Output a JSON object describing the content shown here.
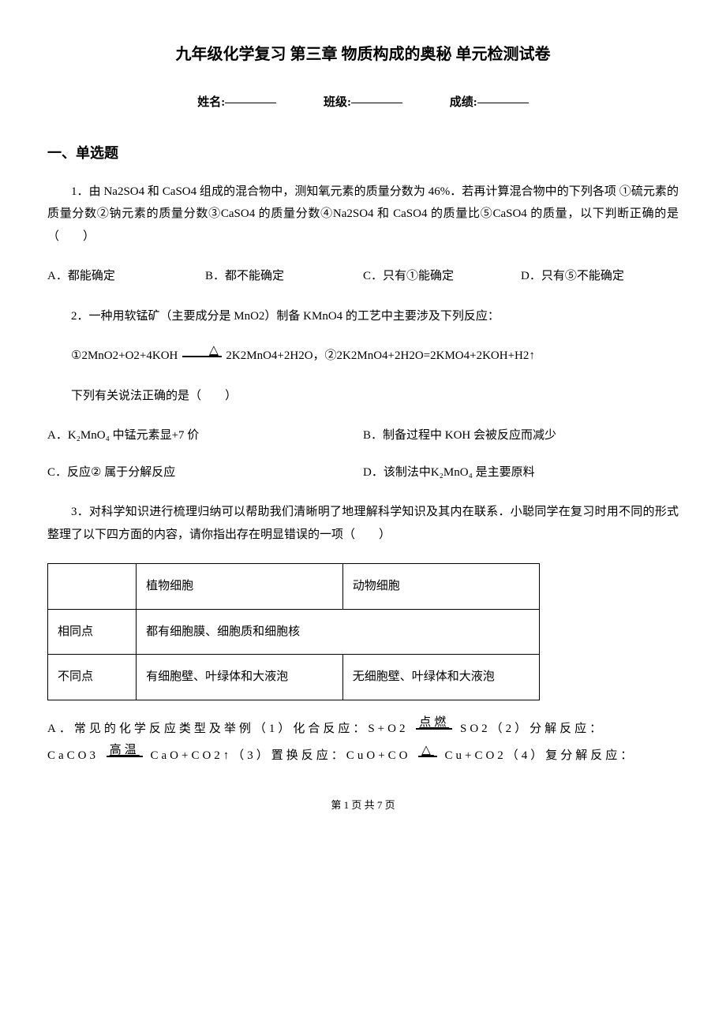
{
  "title": "九年级化学复习 第三章 物质构成的奥秘 单元检测试卷",
  "info": {
    "name_label": "姓名:",
    "class_label": "班级:",
    "score_label": "成绩:"
  },
  "section1_title": "一、单选题",
  "q1": {
    "text": "1．由 Na2SO4 和 CaSO4 组成的混合物中，测知氧元素的质量分数为 46%．若再计算混合物中的下列各项 ①硫元素的质量分数②钠元素的质量分数③CaSO4 的质量分数④Na2SO4 和 CaSO4 的质量比⑤CaSO4 的质量，以下判断正确的是（　　）",
    "optA": "A．都能确定",
    "optB": "B．都不能确定",
    "optC": "C．只有①能确定",
    "optD": "D．只有⑤不能确定"
  },
  "q2": {
    "text": "2．一种用软锰矿（主要成分是 MnO2）制备 KMnO4 的工艺中主要涉及下列反应：",
    "eq": "①2MnO2+O2+4KOH　2K2MnO4+2H2O，②2K2MnO4+2H2O=2KMO4+2KOH+H2↑",
    "sub": "下列有关说法正确的是（　　）",
    "optA_pre": "A．",
    "optA_formula": "K₂MnO₄",
    "optA_post": " 中锰元素显+7 价",
    "optB": "B．制备过程中 KOH 会被反应而减少",
    "optC_pre": "C．反应",
    "optC_circ": "②",
    "optC_post": " 属于分解反应",
    "optD_pre": "D．该制法中",
    "optD_formula": "K₂MnO₄",
    "optD_post": " 是主要原料"
  },
  "q3": {
    "text": "3．对科学知识进行梳理归纳可以帮助我们清晰明了地理解科学知识及其内在联系．小聪同学在复习时用不同的形式整理了以下四方面的内容，请你指出存在明显错误的一项（　　）"
  },
  "table": {
    "h2": "植物细胞",
    "h3": "动物细胞",
    "r1c1": "相同点",
    "r1c2": "都有细胞膜、细胞质和细胞核",
    "r2c1": "不同点",
    "r2c2": "有细胞壁、叶绿体和大液泡",
    "r2c3": "无细胞壁、叶绿体和大液泡"
  },
  "optionA_text": {
    "line1_pre": "A．常见的化学反应类型及举例（1）化合反应：S+O2",
    "line1_cond": "点燃",
    "line1_post": "SO2（2）分解反应：",
    "line2_pre": "CaCO3",
    "line2_cond1": "高温",
    "line2_mid": "CaO+CO2↑（3）置换反应：CuO+CO",
    "line2_cond2": "△",
    "line2_post": "Cu+CO2（4）复分解反应："
  },
  "footer": "第 1 页 共 7 页",
  "cond_delta": "△"
}
